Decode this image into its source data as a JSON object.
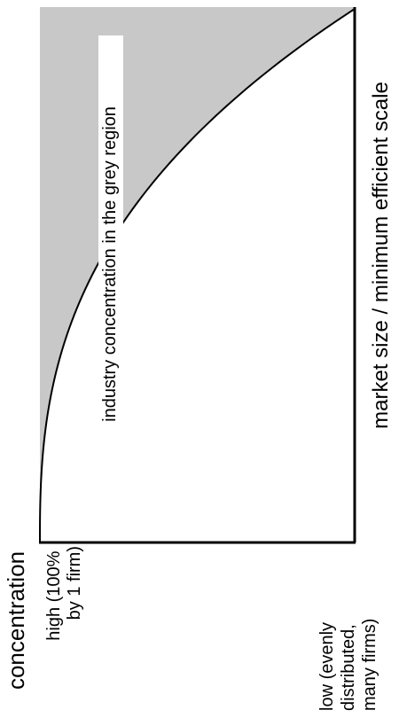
{
  "diagram": {
    "axis_title_concentration": "concentration",
    "y_high_label": {
      "line1": "high  (100%",
      "line2": "by 1 firm)"
    },
    "y_low_label": {
      "line1": "low (evenly",
      "line2": "distributed,",
      "line3": "many firms)"
    },
    "x_axis_title": "market size / minimum efficient scale",
    "region_label": "industry concentration in the grey region",
    "colors": {
      "region_fill": "#c8c8c8",
      "curve": "#000000",
      "axes": "#000000",
      "label_background": "#ffffff"
    }
  }
}
